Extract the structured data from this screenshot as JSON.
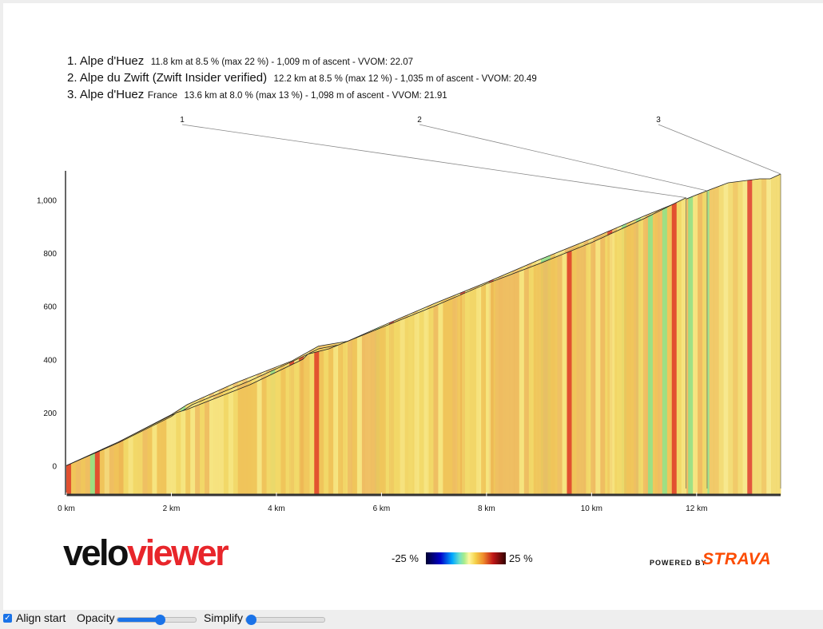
{
  "segments": [
    {
      "label": "1. Alpe d'Huez",
      "country": "",
      "stats": "11.8 km at 8.5 % (max 22 %) - 1,009 m of ascent - VVOM: 22.07"
    },
    {
      "label": "2. Alpe du Zwift (Zwift Insider verified)",
      "country": "",
      "stats": "12.2 km at 8.5 % (max 12 %) - 1,035 m of ascent - VVOM: 20.49"
    },
    {
      "label": "3. Alpe d'Huez",
      "country": "France",
      "stats": "13.6 km at 8.0 % (max 13 %) - 1,098 m of ascent - VVOM: 21.91"
    }
  ],
  "chart_data": {
    "type": "area",
    "title": "",
    "xlabel": "",
    "ylabel": "",
    "x_unit": "km",
    "xlim": [
      0,
      13.6
    ],
    "ylim": [
      -110,
      1110
    ],
    "x_ticks": [
      "0 km",
      "2 km",
      "4 km",
      "6 km",
      "8 km",
      "10 km",
      "12 km"
    ],
    "x_tick_values": [
      0,
      2,
      4,
      6,
      8,
      10,
      12
    ],
    "y_ticks": [
      "0",
      "200",
      "400",
      "600",
      "800",
      "1,000"
    ],
    "y_tick_values": [
      0,
      200,
      400,
      600,
      800,
      1000
    ],
    "grid": false,
    "gradient_scale": {
      "min": "-25 %",
      "max": "25 %"
    },
    "series": [
      {
        "name": "1",
        "length_km": 11.8,
        "ascent_m": 1009,
        "x": [
          0,
          1,
          2,
          2.1,
          2.3,
          3.5,
          4.5,
          4.6,
          5,
          6,
          7,
          8,
          9,
          10,
          11,
          11.8
        ],
        "y": [
          0,
          87,
          185,
          200,
          212,
          305,
          400,
          420,
          440,
          520,
          600,
          685,
          760,
          840,
          930,
          1009
        ]
      },
      {
        "name": "2",
        "length_km": 12.2,
        "ascent_m": 1035,
        "x": [
          0,
          1,
          2,
          2.2,
          2.4,
          3.5,
          4.5,
          4.8,
          5.2,
          6,
          7,
          8,
          9,
          10,
          11,
          12,
          12.2
        ],
        "y": [
          0,
          90,
          190,
          205,
          230,
          320,
          410,
          440,
          455,
          525,
          610,
          690,
          775,
          855,
          940,
          1020,
          1035
        ]
      },
      {
        "name": "3",
        "length_km": 13.6,
        "ascent_m": 1098,
        "x": [
          0,
          1,
          2,
          2.3,
          3.2,
          4.3,
          4.8,
          5.4,
          6.5,
          7.5,
          8.5,
          9.5,
          10.5,
          11.5,
          12.2,
          12.6,
          13.2,
          13.4,
          13.6
        ],
        "y": [
          0,
          90,
          192,
          230,
          310,
          395,
          450,
          470,
          555,
          640,
          720,
          805,
          888,
          975,
          1035,
          1065,
          1080,
          1080,
          1098
        ]
      }
    ]
  },
  "footer": {
    "logo_part1": "velo",
    "logo_part2": "viewer",
    "scale_min": "-25 %",
    "scale_max": "25 %",
    "powered_by": "POWERED BY",
    "strava": "STRAVA"
  },
  "controls": {
    "align_start_label": "Align start",
    "align_start_checked": true,
    "opacity_label": "Opacity",
    "opacity_value": 0.55,
    "simplify_label": "Simplify",
    "simplify_value": 0
  },
  "colors": {
    "accent": "#1a73e8",
    "strava": "#fc4c02",
    "logo_red": "#e8262b"
  }
}
